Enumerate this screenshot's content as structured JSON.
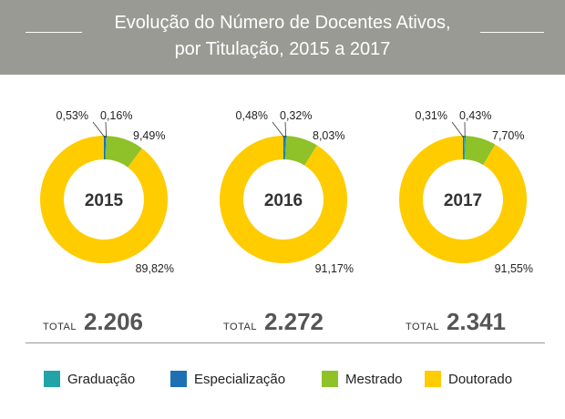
{
  "header": {
    "title_line1": "Evolução do Número de Docentes Ativos,",
    "title_line2": "por Titulação, 2015 a 2017"
  },
  "colors": {
    "header_bg": "#9a9a94",
    "Graduação": "#21a3a8",
    "Especialização": "#1f6fb4",
    "Mestrado": "#8fc128",
    "Doutorado": "#ffcc00"
  },
  "chart_data": [
    {
      "type": "pie",
      "title": "2015",
      "categories": [
        "Graduação",
        "Especialização",
        "Mestrado",
        "Doutorado"
      ],
      "values": [
        0.16,
        0.53,
        9.49,
        89.82
      ],
      "labels": [
        "0,16%",
        "0,53%",
        "9,49%",
        "89,82%"
      ],
      "total_label": "TOTAL",
      "total": "2.206"
    },
    {
      "type": "pie",
      "title": "2016",
      "categories": [
        "Graduação",
        "Especialização",
        "Mestrado",
        "Doutorado"
      ],
      "values": [
        0.32,
        0.48,
        8.03,
        91.17
      ],
      "labels": [
        "0,32%",
        "0,48%",
        "8,03%",
        "91,17%"
      ],
      "total_label": "TOTAL",
      "total": "2.272"
    },
    {
      "type": "pie",
      "title": "2017",
      "categories": [
        "Graduação",
        "Especialização",
        "Mestrado",
        "Doutorado"
      ],
      "values": [
        0.43,
        0.31,
        7.7,
        91.55
      ],
      "labels": [
        "0,43%",
        "0,31%",
        "7,70%",
        "91,55%"
      ],
      "total_label": "TOTAL",
      "total": "2.341"
    }
  ],
  "legend": [
    {
      "label": "Graduação",
      "color": "#21a3a8"
    },
    {
      "label": "Especialização",
      "color": "#1f6fb4"
    },
    {
      "label": "Mestrado",
      "color": "#8fc128"
    },
    {
      "label": "Doutorado",
      "color": "#ffcc00"
    }
  ]
}
